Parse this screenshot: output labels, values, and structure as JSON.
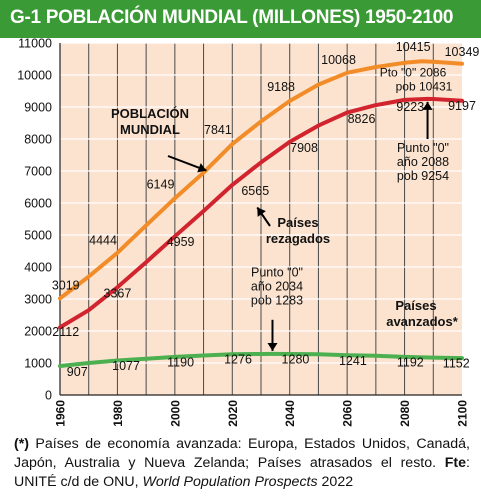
{
  "title": "G-1  POBLACIÓN MUNDIAL (MILLONES) 1950-2100",
  "colors": {
    "title_bg": "#3a9a35",
    "plot_bg": "#fce3cf",
    "grid": "#ffffff",
    "world": "#f28c28",
    "developing": "#d1242f",
    "developed": "#4caf50",
    "text": "#111111"
  },
  "chart_data": {
    "type": "line",
    "title": "POBLACIÓN MUNDIAL (MILLONES) 1950-2100",
    "xlim": [
      1960,
      2100
    ],
    "ylim": [
      0,
      11000
    ],
    "x_ticks": [
      "1960",
      "1980",
      "2000",
      "2020",
      "2040",
      "2060",
      "2080",
      "2100"
    ],
    "y_ticks": [
      "0",
      "1000",
      "2000",
      "3000",
      "4000",
      "5000",
      "6000",
      "7000",
      "8000",
      "9000",
      "10000",
      "11000"
    ],
    "grid": true,
    "series": [
      {
        "name": "POBLACIÓN MUNDIAL",
        "color": "#f28c28",
        "x": [
          1960,
          1970,
          1980,
          1990,
          2000,
          2010,
          2020,
          2030,
          2040,
          2050,
          2060,
          2070,
          2080,
          2086,
          2090,
          2100
        ],
        "y": [
          3019,
          3700,
          4444,
          5300,
          6149,
          6950,
          7841,
          8550,
          9188,
          9700,
          10068,
          10250,
          10380,
          10431,
          10415,
          10349
        ]
      },
      {
        "name": "Países rezagados",
        "color": "#d1242f",
        "x": [
          1960,
          1970,
          1980,
          1990,
          2000,
          2010,
          2020,
          2030,
          2040,
          2050,
          2060,
          2070,
          2080,
          2088,
          2090,
          2100
        ],
        "y": [
          2112,
          2650,
          3367,
          4150,
          4959,
          5750,
          6565,
          7270,
          7908,
          8420,
          8826,
          9060,
          9223,
          9254,
          9250,
          9197
        ]
      },
      {
        "name": "Países avanzados*",
        "color": "#4caf50",
        "x": [
          1960,
          1970,
          1980,
          1990,
          2000,
          2010,
          2020,
          2030,
          2034,
          2040,
          2050,
          2060,
          2070,
          2080,
          2090,
          2100
        ],
        "y": [
          907,
          1000,
          1077,
          1130,
          1190,
          1235,
          1276,
          1280,
          1283,
          1280,
          1275,
          1241,
          1225,
          1192,
          1170,
          1152
        ]
      }
    ],
    "data_labels": [
      {
        "text": "3019",
        "x": 1962,
        "y": 3300
      },
      {
        "text": "4444",
        "x": 1975,
        "y": 4700
      },
      {
        "text": "6149",
        "x": 1995,
        "y": 6450
      },
      {
        "text": "7841",
        "x": 2015,
        "y": 8150
      },
      {
        "text": "9188",
        "x": 2037,
        "y": 9500
      },
      {
        "text": "10068",
        "x": 2057,
        "y": 10350
      },
      {
        "text": "10415",
        "x": 2083,
        "y": 10750
      },
      {
        "text": "10349",
        "x": 2100,
        "y": 10600
      },
      {
        "text": "2112",
        "x": 1962,
        "y": 1850
      },
      {
        "text": "3367",
        "x": 1980,
        "y": 3050
      },
      {
        "text": "4959",
        "x": 2002,
        "y": 4650
      },
      {
        "text": "6565",
        "x": 2028,
        "y": 6250
      },
      {
        "text": "7908",
        "x": 2045,
        "y": 7600
      },
      {
        "text": "8826",
        "x": 2065,
        "y": 8500
      },
      {
        "text": "9223",
        "x": 2082,
        "y": 8870
      },
      {
        "text": "9197",
        "x": 2100,
        "y": 8900
      },
      {
        "text": "907",
        "x": 1966,
        "y": 600
      },
      {
        "text": "1077",
        "x": 1983,
        "y": 780
      },
      {
        "text": "1190",
        "x": 2002,
        "y": 890
      },
      {
        "text": "1276",
        "x": 2022,
        "y": 980
      },
      {
        "text": "1280",
        "x": 2042,
        "y": 980
      },
      {
        "text": "1241",
        "x": 2062,
        "y": 940
      },
      {
        "text": "1192",
        "x": 2082,
        "y": 890
      },
      {
        "text": "1152",
        "x": 2098,
        "y": 860
      }
    ],
    "annotations": {
      "world_label": [
        "POBLACIÓN",
        "MUNDIAL"
      ],
      "developing_label": [
        "Países",
        "rezagados"
      ],
      "developed_label": [
        "Países",
        "avanzados*"
      ],
      "world_peak": [
        "Pto \"0\" 2086",
        "pob 10431"
      ],
      "developing_peak": [
        "Punto \"0\"",
        "año 2088",
        "pob 9254"
      ],
      "developed_peak": [
        "Punto \"0\"",
        "año 2034",
        "pob 1283"
      ]
    }
  },
  "footnote": {
    "star": "(*)",
    "text1": " Países de economía avanzada: Europa, Estados Unidos, Canadá, Japón, Australia y Nueva Zelanda; Países atrasados el resto. ",
    "source_label": "Fte",
    "text2": ": UNITÉ c/d de ONU, ",
    "source_title": "World Population Prospects",
    "year": " 2022"
  }
}
